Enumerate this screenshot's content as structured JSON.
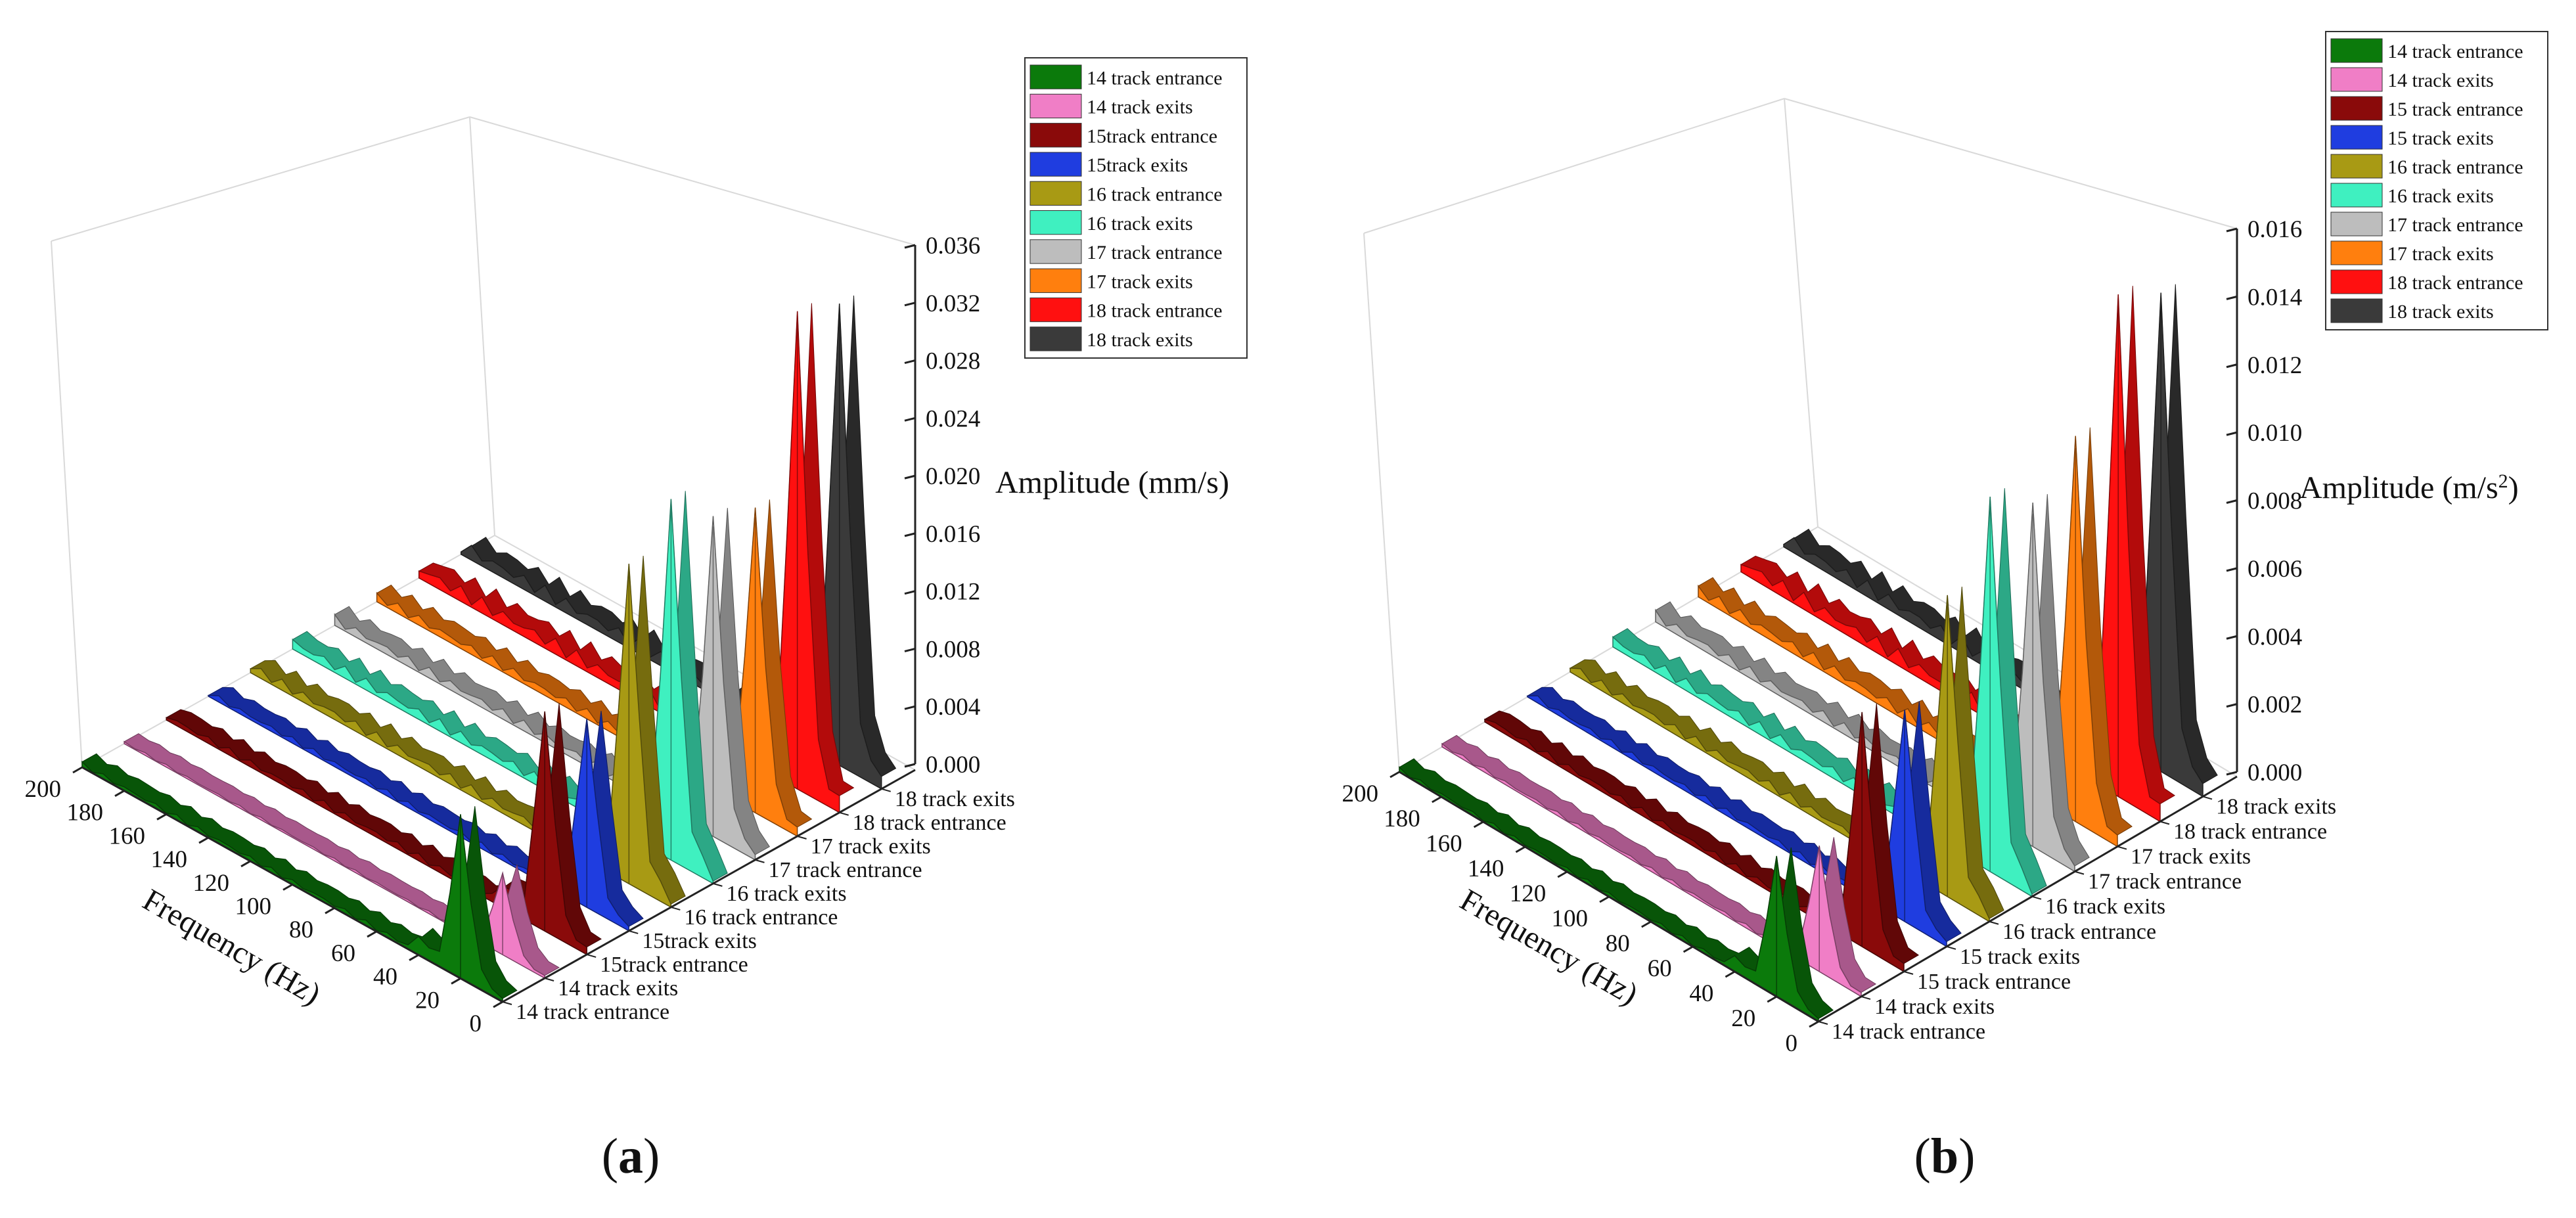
{
  "chart_data": [
    {
      "type": "area",
      "panel_label": "a",
      "title": "",
      "xlabel": "Frequency (Hz)",
      "zlabel": "Amplitude (mm/s)",
      "ylabel": "",
      "x_ticks": [
        "0",
        "20",
        "40",
        "60",
        "80",
        "100",
        "120",
        "140",
        "160",
        "180",
        "200"
      ],
      "z_ticks": [
        "0.000",
        "0.004",
        "0.008",
        "0.012",
        "0.016",
        "0.020",
        "0.024",
        "0.028",
        "0.032",
        "0.036"
      ],
      "xlim": [
        0,
        200
      ],
      "zlim": [
        0,
        0.036
      ],
      "legend_position": "top-right",
      "series": [
        {
          "name": "14 track entrance",
          "color": "#0b7a0b",
          "peak_hz": 20,
          "peak_amplitude": 0.011
        },
        {
          "name": "14 track exits",
          "color": "#f07ec6",
          "peak_hz": 20,
          "peak_amplitude": 0.0055
        },
        {
          "name": "15track entrance",
          "color": "#8a0a0a",
          "peak_hz": 20,
          "peak_amplitude": 0.015
        },
        {
          "name": "15track exits",
          "color": "#1f3de0",
          "peak_hz": 20,
          "peak_amplitude": 0.013
        },
        {
          "name": "16 track entrance",
          "color": "#a89a14",
          "peak_hz": 20,
          "peak_amplitude": 0.022
        },
        {
          "name": "16 track exits",
          "color": "#3ff0c0",
          "peak_hz": 20,
          "peak_amplitude": 0.0245
        },
        {
          "name": "17 track entrance",
          "color": "#bdbdbd",
          "peak_hz": 20,
          "peak_amplitude": 0.0215
        },
        {
          "name": "17 track exits",
          "color": "#ff7f0e",
          "peak_hz": 20,
          "peak_amplitude": 0.0205
        },
        {
          "name": "18 track entrance",
          "color": "#ff1010",
          "peak_hz": 20,
          "peak_amplitude": 0.0325
        },
        {
          "name": "18 track exits",
          "color": "#3a3a3a",
          "peak_hz": 20,
          "peak_amplitude": 0.0318
        }
      ]
    },
    {
      "type": "area",
      "panel_label": "b",
      "title": "",
      "xlabel": "Frequency (Hz)",
      "zlabel_main": "Amplitude (m/s",
      "zlabel_sup": "2",
      "zlabel_end": ")",
      "ylabel": "",
      "x_ticks": [
        "0",
        "20",
        "40",
        "60",
        "80",
        "100",
        "120",
        "140",
        "160",
        "180",
        "200"
      ],
      "z_ticks": [
        "0.000",
        "0.002",
        "0.004",
        "0.006",
        "0.008",
        "0.010",
        "0.012",
        "0.014",
        "0.016"
      ],
      "xlim": [
        0,
        200
      ],
      "zlim": [
        0,
        0.016
      ],
      "legend_position": "top-right",
      "series": [
        {
          "name": "14 track entrance",
          "color": "#0b7a0b",
          "peak_hz": 20,
          "peak_amplitude": 0.004
        },
        {
          "name": "14 track exits",
          "color": "#f07ec6",
          "peak_hz": 20,
          "peak_amplitude": 0.0036
        },
        {
          "name": "15 track entrance",
          "color": "#8a0a0a",
          "peak_hz": 20,
          "peak_amplitude": 0.0068
        },
        {
          "name": "15 track exits",
          "color": "#1f3de0",
          "peak_hz": 20,
          "peak_amplitude": 0.0062
        },
        {
          "name": "16 track entrance",
          "color": "#a89a14",
          "peak_hz": 20,
          "peak_amplitude": 0.0088
        },
        {
          "name": "16 track exits",
          "color": "#3ff0c0",
          "peak_hz": 20,
          "peak_amplitude": 0.0108
        },
        {
          "name": "17 track entrance",
          "color": "#bdbdbd",
          "peak_hz": 20,
          "peak_amplitude": 0.0098
        },
        {
          "name": "17 track exits",
          "color": "#ff7f0e",
          "peak_hz": 20,
          "peak_amplitude": 0.011
        },
        {
          "name": "18 track entrance",
          "color": "#ff1010",
          "peak_hz": 20,
          "peak_amplitude": 0.0145
        },
        {
          "name": "18 track exits",
          "color": "#3a3a3a",
          "peak_hz": 20,
          "peak_amplitude": 0.014
        }
      ]
    }
  ],
  "captions": [
    "a",
    "b"
  ]
}
